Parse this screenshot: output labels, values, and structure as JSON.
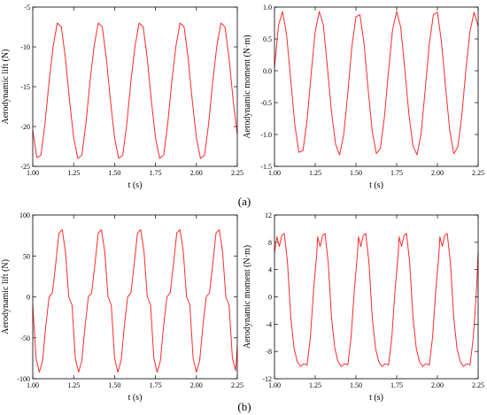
{
  "panel_labels": [
    "(a)",
    "(b)"
  ],
  "chart_data": [
    {
      "type": "line",
      "panel": "(a)",
      "xlabel": "t (s)",
      "ylabel": "Aerodynamic lift (N)",
      "xlim": [
        1.0,
        2.25
      ],
      "ylim": [
        -25,
        -5
      ],
      "xticks": [
        1.0,
        1.25,
        1.5,
        1.75,
        2.0,
        2.25
      ],
      "xtick_labels": [
        "1.00",
        "1.25",
        "1.50",
        "1.75",
        "2.00",
        "2.25"
      ],
      "yticks": [
        -25,
        -20,
        -15,
        -10,
        -5
      ],
      "ytick_labels": [
        "-25",
        "-20",
        "-15",
        "-10",
        "-5"
      ],
      "color": "#ff2a2a",
      "series": [
        {
          "x": [
            1.0,
            1.025,
            1.05,
            1.075,
            1.1,
            1.125,
            1.15,
            1.175,
            1.2,
            1.225,
            1.25,
            1.275,
            1.3,
            1.325,
            1.35,
            1.375,
            1.4,
            1.425,
            1.45,
            1.475,
            1.5,
            1.525,
            1.55,
            1.575,
            1.6,
            1.625,
            1.65,
            1.675,
            1.7,
            1.725,
            1.75,
            1.775,
            1.8,
            1.825,
            1.85,
            1.875,
            1.9,
            1.925,
            1.95,
            1.975,
            2.0,
            2.025,
            2.05,
            2.075,
            2.1,
            2.125,
            2.15,
            2.175,
            2.2,
            2.225,
            2.25
          ],
          "y": [
            -20.5,
            -23.9,
            -23.6,
            -19.6,
            -14.3,
            -9.9,
            -7.0,
            -7.5,
            -11.5,
            -16.8,
            -21.4,
            -24.0,
            -23.6,
            -19.6,
            -14.3,
            -9.9,
            -7.0,
            -7.5,
            -11.5,
            -16.8,
            -21.4,
            -24.0,
            -23.6,
            -19.6,
            -14.3,
            -9.9,
            -7.0,
            -7.5,
            -11.5,
            -16.8,
            -21.4,
            -24.0,
            -23.6,
            -19.6,
            -14.3,
            -9.9,
            -7.0,
            -7.5,
            -11.5,
            -16.8,
            -21.4,
            -24.0,
            -23.6,
            -19.6,
            -14.3,
            -9.9,
            -7.0,
            -7.5,
            -11.5,
            -16.8,
            -21.0
          ]
        }
      ]
    },
    {
      "type": "line",
      "panel": "(a)",
      "xlabel": "t (s)",
      "ylabel": "Aerodynamic moment (N·m)",
      "xlim": [
        1.0,
        2.25
      ],
      "ylim": [
        -1.5,
        1.0
      ],
      "xticks": [
        1.0,
        1.25,
        1.5,
        1.75,
        2.0,
        2.25
      ],
      "xtick_labels": [
        "1.00",
        "1.25",
        "1.50",
        "1.75",
        "2.00",
        "2.25"
      ],
      "yticks": [
        -1.5,
        -1.0,
        -0.5,
        0.0,
        0.5,
        1.0
      ],
      "ytick_labels": [
        "-1.5",
        "-1.0",
        "-0.5",
        "0.0",
        "0.5",
        "1.0"
      ],
      "color": "#ff2a2a",
      "series": [
        {
          "x": [
            1.0,
            1.025,
            1.05,
            1.075,
            1.1,
            1.125,
            1.15,
            1.175,
            1.2,
            1.225,
            1.25,
            1.275,
            1.3,
            1.325,
            1.35,
            1.375,
            1.4,
            1.425,
            1.45,
            1.475,
            1.5,
            1.525,
            1.55,
            1.575,
            1.6,
            1.625,
            1.65,
            1.675,
            1.7,
            1.725,
            1.75,
            1.775,
            1.8,
            1.825,
            1.85,
            1.875,
            1.9,
            1.925,
            1.95,
            1.975,
            2.0,
            2.025,
            2.05,
            2.075,
            2.1,
            2.125,
            2.15,
            2.175,
            2.2,
            2.225,
            2.25
          ],
          "y": [
            0.05,
            0.72,
            0.93,
            0.55,
            -0.15,
            -0.85,
            -1.28,
            -1.25,
            -0.78,
            -0.05,
            0.62,
            0.93,
            0.72,
            0.05,
            -0.65,
            -1.15,
            -1.32,
            -1.0,
            -0.35,
            0.38,
            0.85,
            0.88,
            0.42,
            -0.3,
            -0.95,
            -1.3,
            -1.22,
            -0.72,
            0.0,
            0.65,
            0.93,
            0.68,
            0.02,
            -0.68,
            -1.18,
            -1.32,
            -0.98,
            -0.3,
            0.42,
            0.88,
            0.92,
            0.45,
            -0.25,
            -0.92,
            -1.3,
            -1.2,
            -0.7,
            0.02,
            0.62,
            0.92,
            0.7
          ]
        }
      ]
    },
    {
      "type": "line",
      "panel": "(b)",
      "xlabel": "t (s)",
      "ylabel": "Aerodynamic lift (N)",
      "xlim": [
        1.0,
        2.25
      ],
      "ylim": [
        -100,
        100
      ],
      "xticks": [
        1.0,
        1.25,
        1.5,
        1.75,
        2.0,
        2.25
      ],
      "xtick_labels": [
        "1.00",
        "1.25",
        "1.50",
        "1.75",
        "2.00",
        "2.25"
      ],
      "yticks": [
        -100,
        -50,
        0,
        50,
        100
      ],
      "ytick_labels": [
        "-100",
        "-50",
        "0",
        "50",
        "100"
      ],
      "color": "#ff2a2a",
      "series": [
        {
          "x": [
            1.0,
            1.02,
            1.04,
            1.06,
            1.08,
            1.1,
            1.12,
            1.14,
            1.16,
            1.18,
            1.2,
            1.22,
            1.24,
            1.26,
            1.28,
            1.3,
            1.32,
            1.34,
            1.36,
            1.38,
            1.4,
            1.42,
            1.44,
            1.46,
            1.48,
            1.5,
            1.52,
            1.54,
            1.56,
            1.58,
            1.6,
            1.62,
            1.64,
            1.66,
            1.68,
            1.7,
            1.72,
            1.74,
            1.76,
            1.78,
            1.8,
            1.82,
            1.84,
            1.86,
            1.88,
            1.9,
            1.92,
            1.94,
            1.96,
            1.98,
            2.0,
            2.02,
            2.04,
            2.06,
            2.08,
            2.1,
            2.12,
            2.14,
            2.16,
            2.18,
            2.2,
            2.22,
            2.24,
            2.25
          ],
          "y": [
            -10,
            -75,
            -92,
            -78,
            -35,
            0,
            5,
            40,
            78,
            82,
            55,
            0,
            -10,
            -75,
            -92,
            -78,
            -35,
            0,
            5,
            40,
            78,
            82,
            55,
            0,
            -10,
            -75,
            -92,
            -78,
            -35,
            0,
            5,
            40,
            78,
            82,
            55,
            0,
            -10,
            -75,
            -92,
            -78,
            -35,
            0,
            5,
            40,
            78,
            82,
            55,
            0,
            -10,
            -75,
            -92,
            -78,
            -35,
            0,
            5,
            40,
            78,
            82,
            55,
            0,
            -10,
            -75,
            -90,
            -60
          ]
        }
      ]
    },
    {
      "type": "line",
      "panel": "(b)",
      "xlabel": "t (s)",
      "ylabel": "Aerodynamic moment (N·m)",
      "xlim": [
        1.0,
        2.25
      ],
      "ylim": [
        -12,
        12
      ],
      "xticks": [
        1.0,
        1.25,
        1.5,
        1.75,
        2.0,
        2.25
      ],
      "xtick_labels": [
        "1.00",
        "1.25",
        "1.50",
        "1.75",
        "2.00",
        "2.25"
      ],
      "yticks": [
        -12,
        -8,
        -4,
        0,
        4,
        8,
        12
      ],
      "ytick_labels": [
        "-12",
        "-8",
        "-4",
        "0",
        "4",
        "8",
        "12"
      ],
      "color": "#ff2a2a",
      "series": [
        {
          "x": [
            1.0,
            1.015,
            1.03,
            1.045,
            1.06,
            1.08,
            1.1,
            1.12,
            1.14,
            1.16,
            1.18,
            1.2,
            1.22,
            1.24,
            1.26,
            1.265,
            1.28,
            1.295,
            1.31,
            1.33,
            1.35,
            1.37,
            1.39,
            1.41,
            1.43,
            1.45,
            1.47,
            1.49,
            1.51,
            1.515,
            1.53,
            1.545,
            1.56,
            1.58,
            1.6,
            1.62,
            1.64,
            1.66,
            1.68,
            1.7,
            1.72,
            1.74,
            1.76,
            1.765,
            1.78,
            1.795,
            1.81,
            1.83,
            1.85,
            1.87,
            1.89,
            1.91,
            1.93,
            1.95,
            1.97,
            1.99,
            2.01,
            2.015,
            2.03,
            2.045,
            2.06,
            2.08,
            2.1,
            2.12,
            2.14,
            2.16,
            2.18,
            2.2,
            2.22,
            2.24,
            2.25
          ],
          "y": [
            6.5,
            8.8,
            7.4,
            9.0,
            9.3,
            5.0,
            -3.0,
            -7.5,
            -9.5,
            -10.2,
            -9.8,
            -10.0,
            -6.0,
            1.0,
            6.5,
            8.8,
            7.4,
            9.0,
            9.3,
            5.0,
            -3.0,
            -7.5,
            -9.5,
            -10.2,
            -9.8,
            -10.0,
            -6.0,
            1.0,
            6.5,
            8.8,
            7.4,
            9.0,
            9.3,
            5.0,
            -3.0,
            -7.5,
            -9.5,
            -10.2,
            -9.8,
            -10.0,
            -6.0,
            1.0,
            6.5,
            8.8,
            7.4,
            9.0,
            9.3,
            5.0,
            -3.0,
            -7.5,
            -9.5,
            -10.2,
            -9.8,
            -10.0,
            -6.0,
            1.0,
            6.5,
            8.8,
            7.4,
            9.0,
            9.3,
            5.0,
            -3.0,
            -7.5,
            -9.5,
            -10.2,
            -9.8,
            -10.0,
            -6.0,
            1.0,
            6.5
          ]
        }
      ]
    }
  ]
}
